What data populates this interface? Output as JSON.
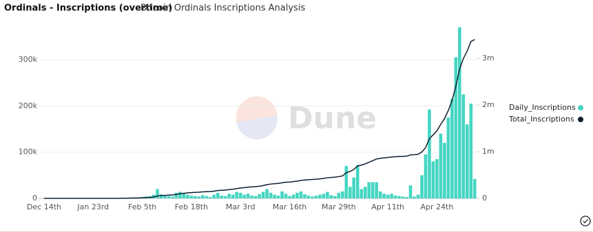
{
  "chart_data": {
    "type": "bar_line",
    "title": "Ordinals - Inscriptions (overtime)",
    "subtitle": "Bitcoin Ordinals Inscriptions Analysis",
    "watermark": "Dune",
    "categories": [
      "Dec 14th",
      null,
      null,
      null,
      null,
      null,
      null,
      null,
      null,
      null,
      null,
      null,
      null,
      "Jan 23rd",
      null,
      null,
      null,
      null,
      null,
      null,
      null,
      null,
      null,
      null,
      null,
      null,
      "Feb 5th",
      null,
      null,
      null,
      null,
      null,
      null,
      null,
      null,
      null,
      null,
      null,
      null,
      "Feb 18th",
      null,
      null,
      null,
      null,
      null,
      null,
      null,
      null,
      null,
      null,
      null,
      null,
      "Mar 3rd",
      null,
      null,
      null,
      null,
      null,
      null,
      null,
      null,
      null,
      null,
      null,
      null,
      "Mar 16th",
      null,
      null,
      null,
      null,
      null,
      null,
      null,
      null,
      null,
      null,
      null,
      null,
      "Mar 29th",
      null,
      null,
      null,
      null,
      null,
      null,
      null,
      null,
      null,
      null,
      null,
      null,
      "Apr 11th",
      null,
      null,
      null,
      null,
      null,
      null,
      null,
      null,
      null,
      null,
      null,
      null,
      "Apr 24th",
      null,
      null,
      null,
      null,
      null,
      null,
      null,
      null,
      null,
      null
    ],
    "series": [
      {
        "name": "Daily_Inscriptions",
        "color": "#45d6c2",
        "kind": "bar",
        "axis": "y",
        "values": [
          0,
          0,
          0,
          0,
          0,
          0,
          0,
          0,
          0,
          0,
          0,
          0,
          0,
          0,
          0,
          0,
          0,
          0,
          0,
          0,
          1000,
          1000,
          1000,
          2000,
          2000,
          2000,
          3000,
          4000,
          5000,
          8000,
          20000,
          9000,
          6000,
          5000,
          4000,
          12000,
          14000,
          10000,
          8000,
          6000,
          5000,
          4000,
          7000,
          5000,
          3000,
          8000,
          12000,
          6000,
          5000,
          10000,
          8000,
          14000,
          12000,
          8000,
          10000,
          6000,
          5000,
          9000,
          14000,
          20000,
          12000,
          8000,
          6000,
          15000,
          10000,
          5000,
          8000,
          12000,
          15000,
          9000,
          6000,
          4000,
          6000,
          8000,
          10000,
          14000,
          7000,
          5000,
          12000,
          15000,
          70000,
          25000,
          45000,
          72000,
          20000,
          25000,
          35000,
          35000,
          35000,
          15000,
          10000,
          8000,
          10000,
          6000,
          5000,
          4000,
          3000,
          28000,
          4000,
          8000,
          50000,
          95000,
          192000,
          80000,
          85000,
          140000,
          120000,
          175000,
          215000,
          305000,
          370000,
          225000,
          160000,
          205000,
          42000
        ]
      },
      {
        "name": "Total_Inscriptions",
        "color": "#0f1e2f",
        "kind": "line",
        "axis": "y2",
        "values": [
          0,
          0,
          0,
          0,
          0,
          0,
          0,
          0,
          0,
          0,
          0,
          0,
          0,
          0,
          0,
          0,
          0,
          0,
          0,
          0,
          1000,
          2000,
          3000,
          5000,
          7000,
          9000,
          12000,
          16000,
          21000,
          29000,
          49000,
          58000,
          64000,
          69000,
          73000,
          85000,
          99000,
          109000,
          117000,
          123000,
          128000,
          132000,
          139000,
          144000,
          147000,
          155000,
          167000,
          173000,
          178000,
          188000,
          196000,
          210000,
          222000,
          230000,
          240000,
          246000,
          251000,
          260000,
          274000,
          294000,
          306000,
          314000,
          320000,
          335000,
          345000,
          350000,
          358000,
          370000,
          385000,
          394000,
          400000,
          404000,
          410000,
          418000,
          428000,
          442000,
          449000,
          454000,
          466000,
          481000,
          551000,
          576000,
          621000,
          693000,
          713000,
          738000,
          773000,
          808000,
          843000,
          858000,
          868000,
          876000,
          886000,
          892000,
          897000,
          901000,
          904000,
          932000,
          936000,
          944000,
          994000,
          1089000,
          1281000,
          1361000,
          1446000,
          1586000,
          1706000,
          1881000,
          2096000,
          2401000,
          2771000,
          2996000,
          3156000,
          3361000,
          3403000
        ]
      }
    ],
    "ylim": [
      0,
      377000
    ],
    "yticks": [
      0,
      {
        "value": 100000,
        "label": "100k"
      },
      {
        "value": 200000,
        "label": "200k"
      },
      {
        "value": 300000,
        "label": "300k"
      }
    ],
    "y2lim": [
      0,
      3735000
    ],
    "y2ticks": [
      0,
      {
        "value": 1000000,
        "label": "1m"
      },
      {
        "value": 2000000,
        "label": "2m"
      },
      {
        "value": 3000000,
        "label": "3m"
      }
    ],
    "grid": true,
    "legend": "right"
  }
}
